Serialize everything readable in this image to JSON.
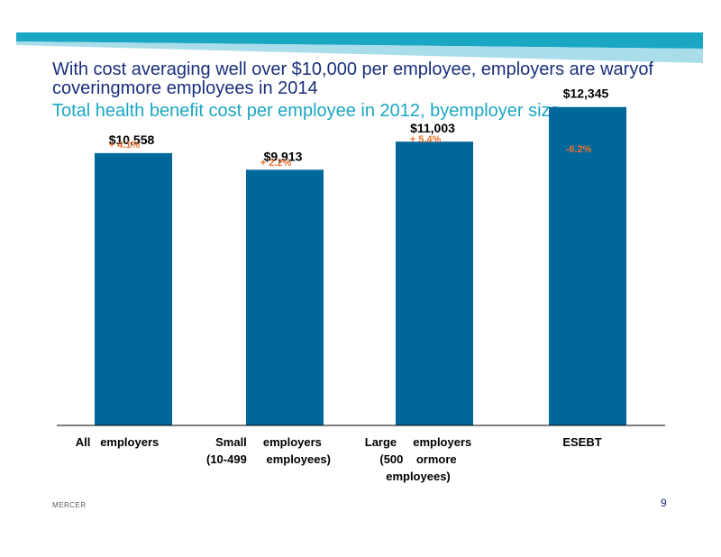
{
  "slide": {
    "title": "With cost averaging well over $10,000 per employee, employers are waryof coveringmore employees in 2014",
    "subtitle": "Total health benefit cost per employee in 2012, byemployer size",
    "footer": "MERCER",
    "page_number": "9"
  },
  "colors": {
    "title": "#1b2f7c",
    "subtitle": "#1aa7c3",
    "bar": "#00679a",
    "change": "#e8722f",
    "band_dark": "#1aa7c3",
    "band_light": "#a9dde9"
  },
  "chart_data": {
    "type": "bar",
    "categories": [
      [
        "All   employers"
      ],
      [
        "Small     employers",
        "(10-499      employees)"
      ],
      [
        "Large     employers",
        "(500    ormore",
        "employees)"
      ],
      [
        "ESEBT"
      ]
    ],
    "values": [
      10558,
      9913,
      11003,
      12345
    ],
    "value_labels": [
      "$10,558",
      "$9,913",
      "$11,003",
      "$12,345"
    ],
    "change_labels": [
      "+  4.1%",
      "+  2.2%",
      "+  5.4%",
      "-6.2%"
    ],
    "ylim": [
      0,
      13000
    ],
    "grid": false,
    "legend": "none"
  }
}
